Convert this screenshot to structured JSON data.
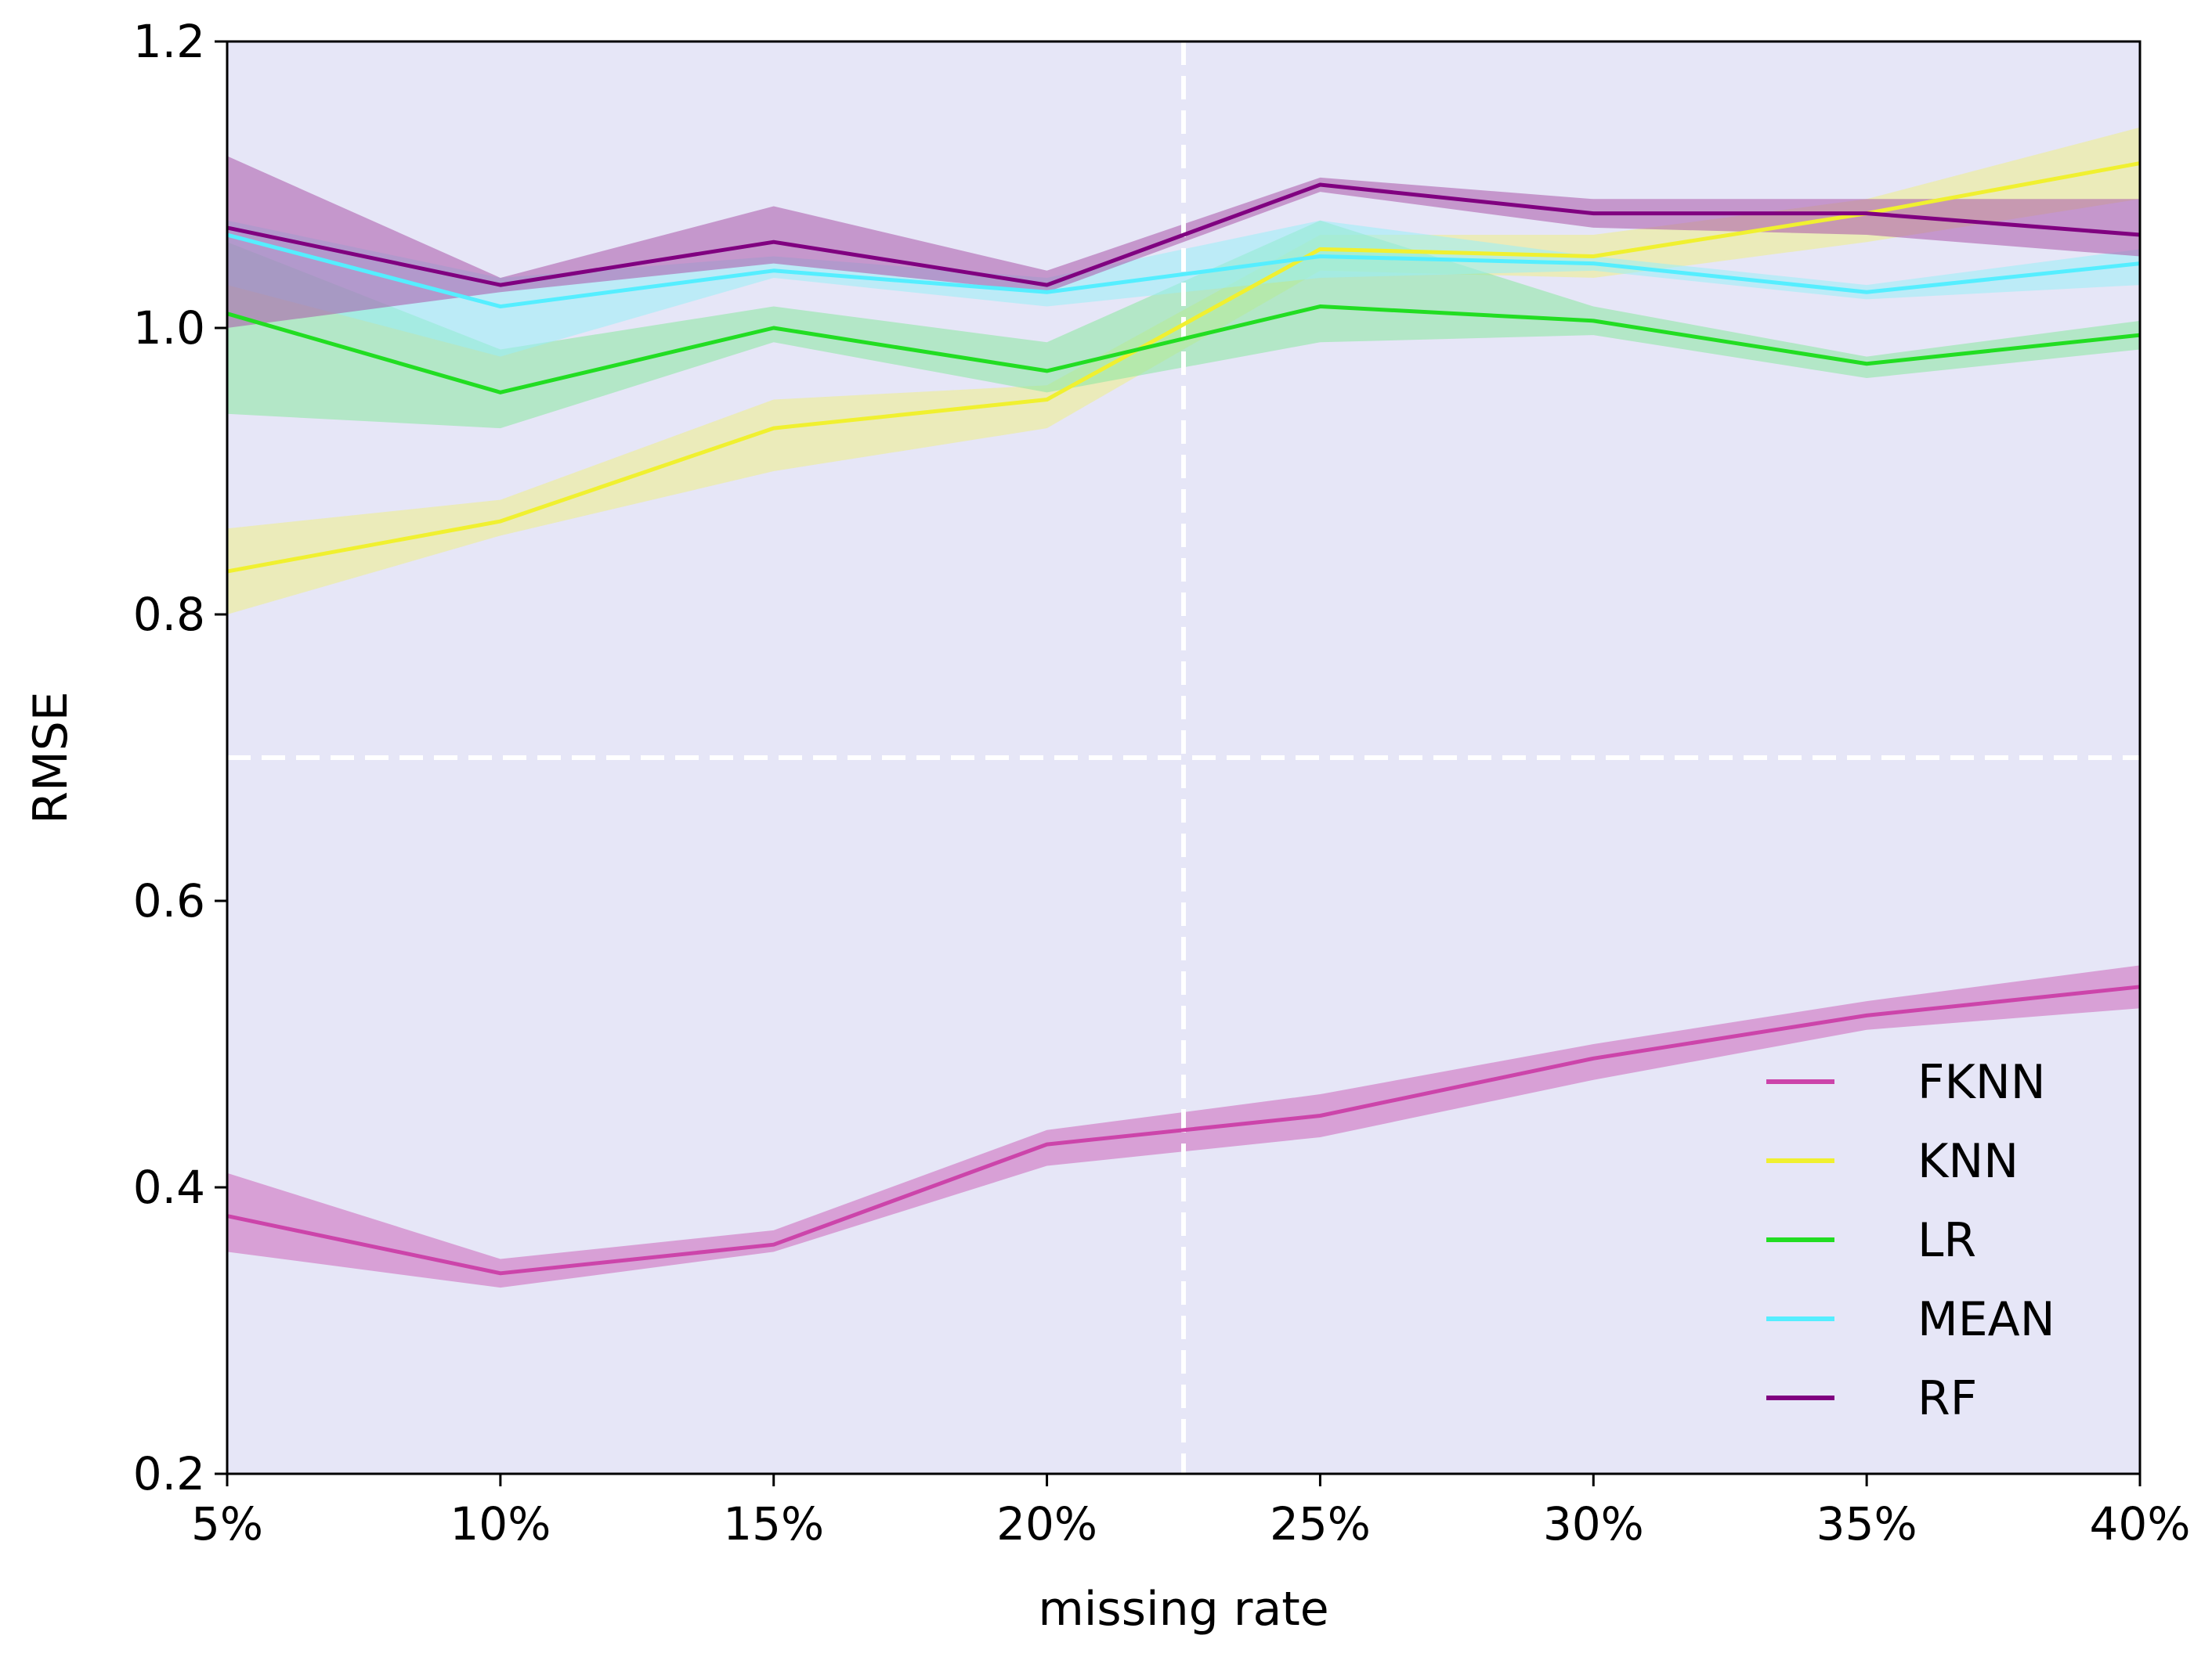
{
  "chart_data": {
    "type": "line",
    "title": "",
    "xlabel": "missing rate",
    "ylabel": "RMSE",
    "categories": [
      "5%",
      "10%",
      "15%",
      "20%",
      "25%",
      "30%",
      "35%",
      "40%"
    ],
    "x": [
      5,
      10,
      15,
      20,
      25,
      30,
      35,
      40
    ],
    "xlim": [
      5,
      40
    ],
    "ylim": [
      0.2,
      1.2
    ],
    "yticks": [
      0.2,
      0.4,
      0.6,
      0.8,
      1.0,
      1.2
    ],
    "ytick_labels": [
      "0.2",
      "0.4",
      "0.6",
      "0.8",
      "1.0",
      "1.2"
    ],
    "background": "#e6e6f7",
    "legend_position": "lower-right",
    "reference_lines": {
      "vertical_x": 22.5,
      "horizontal_y": 0.7,
      "color": "#ffffff",
      "style": "dashed"
    },
    "series": [
      {
        "name": "FKNN",
        "color": "#cc44aa",
        "band_color": "#cc66bb",
        "values": [
          0.38,
          0.34,
          0.36,
          0.43,
          0.45,
          0.49,
          0.52,
          0.54
        ],
        "lower": [
          0.355,
          0.33,
          0.355,
          0.415,
          0.435,
          0.475,
          0.51,
          0.525
        ],
        "upper": [
          0.41,
          0.35,
          0.37,
          0.44,
          0.465,
          0.5,
          0.53,
          0.555
        ]
      },
      {
        "name": "KNN",
        "color": "#f0f030",
        "band_color": "#eeee88",
        "values": [
          0.83,
          0.865,
          0.93,
          0.95,
          1.055,
          1.05,
          1.08,
          1.115
        ],
        "lower": [
          0.8,
          0.855,
          0.9,
          0.93,
          1.04,
          1.035,
          1.06,
          1.09
        ],
        "upper": [
          0.86,
          0.88,
          0.95,
          0.96,
          1.065,
          1.065,
          1.09,
          1.14
        ]
      },
      {
        "name": "LR",
        "color": "#22dd22",
        "band_color": "#88e8a0",
        "values": [
          1.01,
          0.955,
          1.0,
          0.97,
          1.015,
          1.005,
          0.975,
          0.995
        ],
        "lower": [
          0.94,
          0.93,
          0.99,
          0.955,
          0.99,
          0.995,
          0.965,
          0.985
        ],
        "upper": [
          1.06,
          0.985,
          1.015,
          0.99,
          1.075,
          1.015,
          0.98,
          1.005
        ]
      },
      {
        "name": "MEAN",
        "color": "#55eeff",
        "band_color": "#99eef8",
        "values": [
          1.065,
          1.015,
          1.04,
          1.025,
          1.05,
          1.045,
          1.025,
          1.045
        ],
        "lower": [
          1.03,
          0.98,
          1.035,
          1.015,
          1.035,
          1.04,
          1.02,
          1.03
        ],
        "upper": [
          1.075,
          1.035,
          1.05,
          1.035,
          1.075,
          1.05,
          1.03,
          1.055
        ]
      },
      {
        "name": "RF",
        "color": "#800080",
        "band_color": "#aa55aa",
        "values": [
          1.07,
          1.03,
          1.06,
          1.03,
          1.1,
          1.08,
          1.08,
          1.065
        ],
        "lower": [
          1.0,
          1.025,
          1.045,
          1.025,
          1.095,
          1.07,
          1.065,
          1.05
        ],
        "upper": [
          1.12,
          1.035,
          1.085,
          1.04,
          1.105,
          1.09,
          1.09,
          1.09
        ]
      }
    ]
  }
}
